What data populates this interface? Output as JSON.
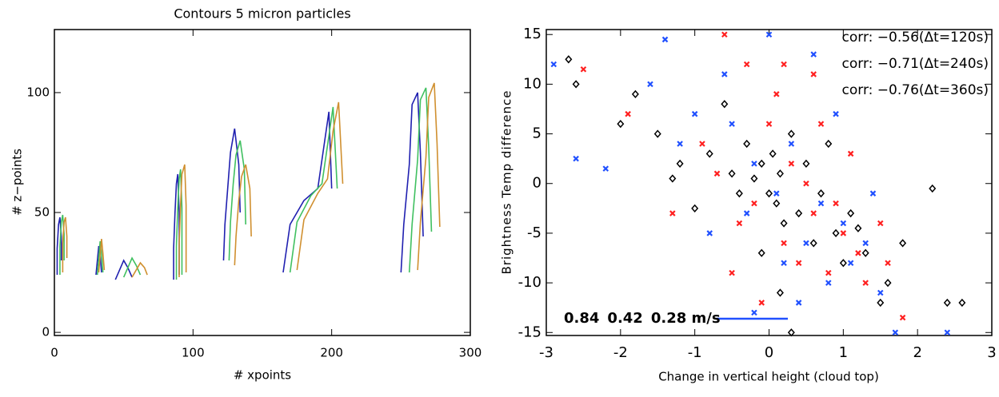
{
  "chart_data": [
    {
      "type": "contour",
      "title": "Contours 5 micron particles",
      "x_label": "# xpoints",
      "y_label": "# z−points",
      "xlim": [
        0,
        300
      ],
      "ylim": [
        -1.3,
        126.3
      ],
      "xticks": [
        0,
        100,
        200,
        300
      ],
      "yticks": [
        0,
        50,
        100
      ],
      "series": [
        {
          "color": "#2020b0",
          "x": [
            2,
            2,
            3,
            4,
            5,
            5
          ],
          "y": [
            24,
            35,
            45,
            48,
            40,
            30
          ]
        },
        {
          "color": "#40c060",
          "x": [
            4,
            4,
            5,
            6,
            7,
            7
          ],
          "y": [
            24,
            36,
            46,
            49,
            41,
            30
          ]
        },
        {
          "color": "#d09030",
          "x": [
            6,
            6,
            7,
            8,
            9,
            9
          ],
          "y": [
            25,
            37,
            46,
            48,
            40,
            31
          ]
        },
        {
          "color": "#2020b0",
          "x": [
            30,
            31,
            32,
            33,
            34
          ],
          "y": [
            24,
            30,
            36,
            32,
            25
          ]
        },
        {
          "color": "#40c060",
          "x": [
            31,
            32,
            33,
            34,
            35
          ],
          "y": [
            24,
            31,
            38,
            33,
            25
          ]
        },
        {
          "color": "#d09030",
          "x": [
            32,
            33,
            34,
            35,
            36
          ],
          "y": [
            25,
            32,
            39,
            33,
            26
          ]
        },
        {
          "color": "#2020b0",
          "x": [
            44,
            47,
            50,
            53,
            56
          ],
          "y": [
            22,
            26,
            30,
            27,
            23
          ]
        },
        {
          "color": "#40c060",
          "x": [
            50,
            53,
            56,
            59,
            62
          ],
          "y": [
            23,
            27,
            31,
            28,
            24
          ]
        },
        {
          "color": "#d09030",
          "x": [
            56,
            59,
            62,
            65,
            67
          ],
          "y": [
            23,
            26,
            29,
            27,
            24
          ]
        },
        {
          "color": "#2020b0",
          "x": [
            86,
            86,
            87,
            88,
            89,
            90,
            90
          ],
          "y": [
            22,
            35,
            50,
            62,
            66,
            50,
            24
          ]
        },
        {
          "color": "#40c060",
          "x": [
            88,
            88,
            89,
            90,
            91,
            92,
            92
          ],
          "y": [
            22,
            36,
            52,
            64,
            68,
            52,
            24
          ]
        },
        {
          "color": "#d09030",
          "x": [
            90,
            90,
            91,
            92,
            94,
            95,
            95
          ],
          "y": [
            23,
            37,
            53,
            66,
            70,
            53,
            25
          ]
        },
        {
          "color": "#2020b0",
          "x": [
            122,
            123,
            125,
            127,
            130,
            133,
            134
          ],
          "y": [
            30,
            45,
            60,
            75,
            85,
            70,
            50
          ]
        },
        {
          "color": "#40c060",
          "x": [
            126,
            127,
            129,
            131,
            134,
            137,
            138
          ],
          "y": [
            30,
            46,
            62,
            74,
            80,
            68,
            45
          ]
        },
        {
          "color": "#d09030",
          "x": [
            130,
            131,
            133,
            135,
            138,
            141,
            142
          ],
          "y": [
            28,
            40,
            55,
            65,
            70,
            60,
            40
          ]
        },
        {
          "color": "#2020b0",
          "x": [
            165,
            170,
            180,
            190,
            195,
            198,
            200
          ],
          "y": [
            25,
            45,
            55,
            60,
            80,
            92,
            60
          ]
        },
        {
          "color": "#40c060",
          "x": [
            170,
            175,
            185,
            193,
            198,
            201,
            204
          ],
          "y": [
            25,
            46,
            57,
            62,
            82,
            94,
            60
          ]
        },
        {
          "color": "#d09030",
          "x": [
            175,
            180,
            190,
            197,
            201,
            205,
            208
          ],
          "y": [
            26,
            47,
            58,
            64,
            84,
            96,
            62
          ]
        },
        {
          "color": "#2020b0",
          "x": [
            250,
            252,
            256,
            258,
            262,
            264,
            266
          ],
          "y": [
            25,
            45,
            70,
            95,
            100,
            75,
            40
          ]
        },
        {
          "color": "#40c060",
          "x": [
            256,
            258,
            262,
            264,
            268,
            270,
            272
          ],
          "y": [
            25,
            45,
            72,
            97,
            102,
            77,
            42
          ]
        },
        {
          "color": "#d09030",
          "x": [
            262,
            264,
            268,
            270,
            274,
            276,
            278
          ],
          "y": [
            26,
            46,
            73,
            98,
            104,
            79,
            44
          ]
        }
      ]
    },
    {
      "type": "scatter",
      "x_label": "Change in vertical height (cloud top)",
      "y_label": "Brightness Temp difference",
      "xlim": [
        -3,
        3
      ],
      "ylim": [
        -15.3,
        15.5
      ],
      "xticks": [
        -3,
        -2,
        -1,
        0,
        1,
        2,
        3
      ],
      "yticks": [
        -15,
        -10,
        -5,
        0,
        5,
        10,
        15
      ],
      "annotations": [
        {
          "text": "corr:  −0.56(Δt=120s)",
          "color": "#000000"
        },
        {
          "text": "corr:  −0.71(Δt=240s)",
          "color": "#ff2020"
        },
        {
          "text": "corr:  −0.76(Δt=360s)",
          "color": "#2050ff"
        }
      ],
      "speeds": [
        {
          "text": "0.84",
          "color": "#000000"
        },
        {
          "text": "0.42",
          "color": "#ff2020"
        },
        {
          "text": "0.28 m/s",
          "color": "#2050ff"
        }
      ],
      "series": [
        {
          "marker": "diamond",
          "color": "#000000",
          "x": [
            -2.7,
            -2.6,
            -2,
            -1.8,
            -1.5,
            -1.2,
            -1,
            -0.8,
            -0.6,
            -0.5,
            -0.4,
            -0.3,
            -0.2,
            -0.1,
            0,
            0.05,
            0.1,
            0.15,
            0.2,
            0.3,
            0.4,
            0.5,
            0.6,
            0.7,
            0.8,
            0.9,
            1,
            1.1,
            1.2,
            1.3,
            1.5,
            1.6,
            1.8,
            2.2,
            2.4,
            2.6,
            -0.1,
            0.3,
            0.15,
            -1.3
          ],
          "y": [
            12.5,
            10,
            6,
            9,
            5,
            2,
            -2.5,
            3,
            8,
            1,
            -1,
            4,
            0.5,
            2,
            -1,
            3,
            -2,
            1,
            -4,
            5,
            -3,
            2,
            -6,
            -1,
            4,
            -5,
            -8,
            -3,
            -4.5,
            -7,
            -12,
            -10,
            -6,
            -0.5,
            -12,
            -12,
            -7,
            -15,
            -11,
            0.5
          ]
        },
        {
          "marker": "cross",
          "color": "#ff2020",
          "x": [
            -2.5,
            -1.9,
            -1.3,
            -0.9,
            -0.7,
            -0.6,
            -0.4,
            -0.3,
            -0.2,
            0,
            0.1,
            0.2,
            0.3,
            0.4,
            0.5,
            0.6,
            0.7,
            0.8,
            0.9,
            1,
            1.2,
            1.3,
            1.6,
            1.8,
            0.2,
            -0.5,
            0.6,
            1.1,
            1.5,
            -0.1
          ],
          "y": [
            11.5,
            7,
            -3,
            4,
            1,
            15,
            -4,
            12,
            -2,
            6,
            9,
            -6,
            2,
            -8,
            0,
            -3,
            6,
            -9,
            -2,
            -5,
            -7,
            -10,
            -8,
            -13.5,
            12,
            -9,
            11,
            3,
            -4,
            -12
          ]
        },
        {
          "marker": "cross",
          "color": "#2050ff",
          "x": [
            -2.9,
            -2.6,
            -2.2,
            -1.6,
            -1.4,
            -1.2,
            -1,
            -0.8,
            -0.6,
            -0.5,
            -0.3,
            -0.2,
            0,
            0.1,
            0.2,
            0.3,
            0.4,
            0.5,
            0.6,
            0.7,
            0.8,
            1,
            1.1,
            1.3,
            1.4,
            1.5,
            1.7,
            2.4,
            0.9,
            -0.2
          ],
          "y": [
            12,
            2.5,
            1.5,
            10,
            14.5,
            4,
            7,
            -5,
            11,
            6,
            -3,
            2,
            15,
            -1,
            -8,
            4,
            -12,
            -6,
            13,
            -2,
            -10,
            -4,
            -8,
            -6,
            -1,
            -11,
            -15,
            -15,
            7,
            -13
          ]
        }
      ]
    }
  ]
}
